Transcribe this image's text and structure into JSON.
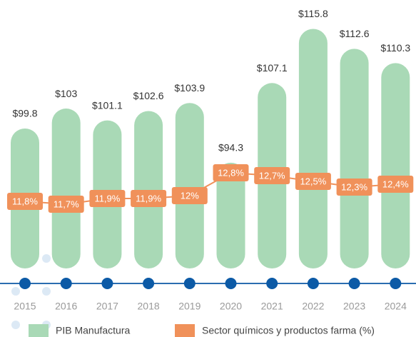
{
  "chart_data": {
    "type": "bar",
    "categories": [
      "2015",
      "2016",
      "2017",
      "2018",
      "2019",
      "2020",
      "2021",
      "2022",
      "2023",
      "2024"
    ],
    "series": [
      {
        "name": "PIB Manufactura",
        "type": "bar",
        "color": "#a9d9b6",
        "values": [
          99.8,
          103,
          101.1,
          102.6,
          103.9,
          94.3,
          107.1,
          115.8,
          112.6,
          110.3
        ],
        "value_labels": [
          "$99.8",
          "$103",
          "$101.1",
          "$102.6",
          "$103.9",
          "$94.3",
          "$107.1",
          "$115.8",
          "$112.6",
          "$110.3"
        ]
      },
      {
        "name": "Sector químicos y productos farma (%)",
        "type": "line",
        "axis": "y2",
        "color": "#f0915a",
        "values": [
          11.8,
          11.7,
          11.9,
          11.9,
          12,
          12.8,
          12.7,
          12.5,
          12.3,
          12.4
        ],
        "value_labels": [
          "11,8%",
          "11,7%",
          "11,9%",
          "11,9%",
          "12%",
          "12,8%",
          "12,7%",
          "12,5%",
          "12,3%",
          "12,4%"
        ]
      }
    ],
    "ylim": [
      78,
      117
    ],
    "y2lim": [
      9.6,
      18.1
    ],
    "legend": "bottom"
  }
}
